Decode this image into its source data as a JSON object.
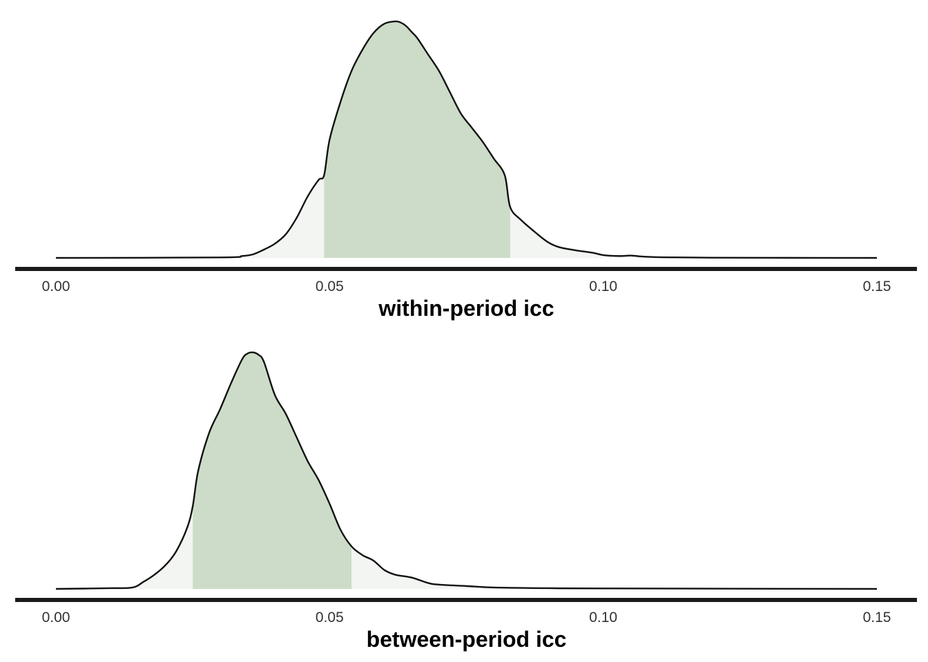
{
  "chart_data": [
    {
      "type": "area",
      "xlabel": "within-period icc",
      "ylabel": "",
      "xlim": [
        0.0,
        0.15
      ],
      "x_ticks": [
        "0.00",
        "0.05",
        "0.10",
        "0.15"
      ],
      "x_tick_values": [
        0.0,
        0.05,
        0.1,
        0.15
      ],
      "interval": [
        0.049,
        0.083
      ],
      "grid": false,
      "colors": {
        "interval_fill": "#ccdcc8",
        "tail_fill": "#f2f5f1",
        "outline": "#111111",
        "axis": "#1a1a1a"
      },
      "density": {
        "x": [
          0.0,
          0.03,
          0.034,
          0.036,
          0.038,
          0.04,
          0.042,
          0.044,
          0.046,
          0.048,
          0.049,
          0.05,
          0.052,
          0.054,
          0.056,
          0.058,
          0.06,
          0.062,
          0.063,
          0.064,
          0.065,
          0.066,
          0.068,
          0.07,
          0.072,
          0.074,
          0.076,
          0.078,
          0.08,
          0.082,
          0.083,
          0.085,
          0.088,
          0.09,
          0.092,
          0.095,
          0.098,
          0.1,
          0.103,
          0.105,
          0.107,
          0.11,
          0.115,
          0.12,
          0.13,
          0.15
        ],
        "y": [
          0.0,
          0.002,
          0.008,
          0.015,
          0.035,
          0.06,
          0.1,
          0.17,
          0.26,
          0.33,
          0.35,
          0.5,
          0.66,
          0.79,
          0.88,
          0.95,
          0.99,
          1.0,
          0.995,
          0.98,
          0.955,
          0.93,
          0.86,
          0.79,
          0.7,
          0.61,
          0.55,
          0.49,
          0.42,
          0.35,
          0.215,
          0.16,
          0.1,
          0.065,
          0.045,
          0.032,
          0.022,
          0.012,
          0.008,
          0.01,
          0.006,
          0.003,
          0.002,
          0.001,
          0.0005,
          0.0
        ]
      }
    },
    {
      "type": "area",
      "xlabel": "between-period icc",
      "ylabel": "",
      "xlim": [
        0.0,
        0.15
      ],
      "x_ticks": [
        "0.00",
        "0.05",
        "0.10",
        "0.15"
      ],
      "x_tick_values": [
        0.0,
        0.05,
        0.1,
        0.15
      ],
      "interval": [
        0.025,
        0.054
      ],
      "grid": false,
      "colors": {
        "interval_fill": "#ccdcc8",
        "tail_fill": "#f2f5f1",
        "outline": "#111111",
        "axis": "#1a1a1a"
      },
      "density": {
        "x": [
          0.0,
          0.01,
          0.014,
          0.016,
          0.018,
          0.02,
          0.022,
          0.024,
          0.025,
          0.026,
          0.028,
          0.03,
          0.032,
          0.034,
          0.035,
          0.036,
          0.037,
          0.038,
          0.04,
          0.042,
          0.044,
          0.046,
          0.048,
          0.05,
          0.052,
          0.054,
          0.056,
          0.058,
          0.06,
          0.062,
          0.065,
          0.068,
          0.07,
          0.075,
          0.08,
          0.09,
          0.1,
          0.15
        ],
        "y": [
          0.0,
          0.003,
          0.006,
          0.03,
          0.06,
          0.1,
          0.16,
          0.26,
          0.35,
          0.5,
          0.66,
          0.76,
          0.87,
          0.97,
          0.995,
          1.0,
          0.99,
          0.96,
          0.82,
          0.74,
          0.64,
          0.54,
          0.46,
          0.36,
          0.25,
          0.18,
          0.143,
          0.12,
          0.08,
          0.06,
          0.048,
          0.025,
          0.018,
          0.012,
          0.006,
          0.003,
          0.002,
          0.0
        ]
      }
    }
  ]
}
